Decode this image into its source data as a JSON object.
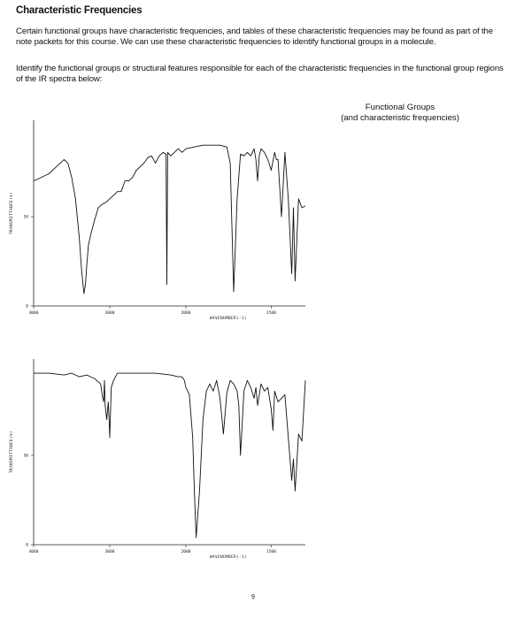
{
  "title": "Characteristic Frequencies",
  "paragraph1": "Certain functional groups have characteristic frequencies, and tables of these characteristic frequencies may be found as part of the note packets for this course.  We can use these characteristic frequencies to identify functional groups in a molecule.",
  "paragraph2": "Identify the functional groups or structural features responsible for each of the characteristic frequencies in the functional group regions of the IR spectra below:",
  "functional_groups_heading": "Functional Groups",
  "functional_groups_subheading": "(and characteristic frequencies)",
  "page_number": "9",
  "chart_data": [
    {
      "type": "line",
      "xlabel": "WAVENUMBER(-1)",
      "ylabel": "TRANSMITTANCE(%)",
      "x_ticks": [
        "4000",
        "3000",
        "2000",
        "1500"
      ],
      "y_ticks": [
        "50",
        "0"
      ],
      "xlim": [
        4000,
        1300
      ],
      "ylim": [
        0,
        100
      ],
      "grid": false,
      "series": [
        {
          "x": [
            4000,
            3900,
            3800,
            3700,
            3600,
            3550,
            3500,
            3450,
            3400,
            3370,
            3340,
            3320,
            3300,
            3280,
            3250,
            3200,
            3150,
            3100,
            3050,
            3000,
            2950,
            2900,
            2850,
            2800,
            2750,
            2700,
            2650,
            2600,
            2550,
            2500,
            2450,
            2400,
            2350,
            2300,
            2260,
            2250,
            2240,
            2200,
            2150,
            2100,
            2050,
            2000,
            1950,
            1900,
            1850,
            1800,
            1760,
            1740,
            1720,
            1700,
            1680,
            1660,
            1640,
            1620,
            1600,
            1590,
            1580,
            1570,
            1560,
            1540,
            1520,
            1500,
            1480,
            1470,
            1460,
            1440,
            1420,
            1400,
            1380,
            1370,
            1360,
            1340,
            1320,
            1300
          ],
          "y": [
            70,
            72,
            74,
            78,
            82,
            80,
            72,
            60,
            38,
            20,
            7,
            12,
            24,
            34,
            40,
            48,
            55,
            57,
            58,
            60,
            62,
            64,
            64,
            70,
            70,
            72,
            76,
            78,
            80,
            83,
            84,
            80,
            84,
            86,
            85,
            12,
            86,
            84,
            86,
            88,
            86,
            88,
            89,
            90,
            90,
            90,
            89,
            80,
            8,
            60,
            85,
            84,
            86,
            84,
            88,
            82,
            70,
            84,
            88,
            86,
            82,
            76,
            86,
            82,
            82,
            50,
            86,
            60,
            18,
            55,
            14,
            60,
            55,
            56
          ]
        }
      ]
    },
    {
      "type": "line",
      "xlabel": "WAVENUMBER(-1)",
      "ylabel": "TRANSMITTANCE(%)",
      "x_ticks": [
        "4000",
        "3000",
        "2000",
        "1500"
      ],
      "y_ticks": [
        "50",
        "0"
      ],
      "xlim": [
        4000,
        1300
      ],
      "ylim": [
        0,
        100
      ],
      "grid": false,
      "series": [
        {
          "x": [
            4000,
            3800,
            3600,
            3500,
            3400,
            3300,
            3200,
            3120,
            3100,
            3080,
            3070,
            3060,
            3040,
            3020,
            3010,
            3000,
            2980,
            2950,
            2900,
            2800,
            2600,
            2400,
            2200,
            2100,
            2050,
            2020,
            2000,
            1980,
            1960,
            1950,
            1940,
            1920,
            1900,
            1880,
            1860,
            1840,
            1820,
            1800,
            1780,
            1760,
            1740,
            1720,
            1700,
            1690,
            1680,
            1660,
            1640,
            1620,
            1600,
            1590,
            1580,
            1560,
            1540,
            1520,
            1500,
            1490,
            1480,
            1460,
            1440,
            1420,
            1400,
            1380,
            1370,
            1360,
            1340,
            1320,
            1300
          ],
          "y": [
            96,
            96,
            95,
            96,
            94,
            95,
            93,
            90,
            84,
            80,
            92,
            78,
            70,
            80,
            72,
            60,
            88,
            92,
            96,
            96,
            96,
            96,
            95,
            94,
            94,
            92,
            88,
            84,
            60,
            30,
            4,
            30,
            70,
            86,
            90,
            86,
            92,
            82,
            62,
            85,
            92,
            90,
            86,
            78,
            50,
            86,
            92,
            88,
            82,
            88,
            78,
            90,
            86,
            88,
            76,
            64,
            86,
            80,
            82,
            84,
            60,
            36,
            48,
            30,
            62,
            58,
            92
          ]
        }
      ]
    }
  ]
}
